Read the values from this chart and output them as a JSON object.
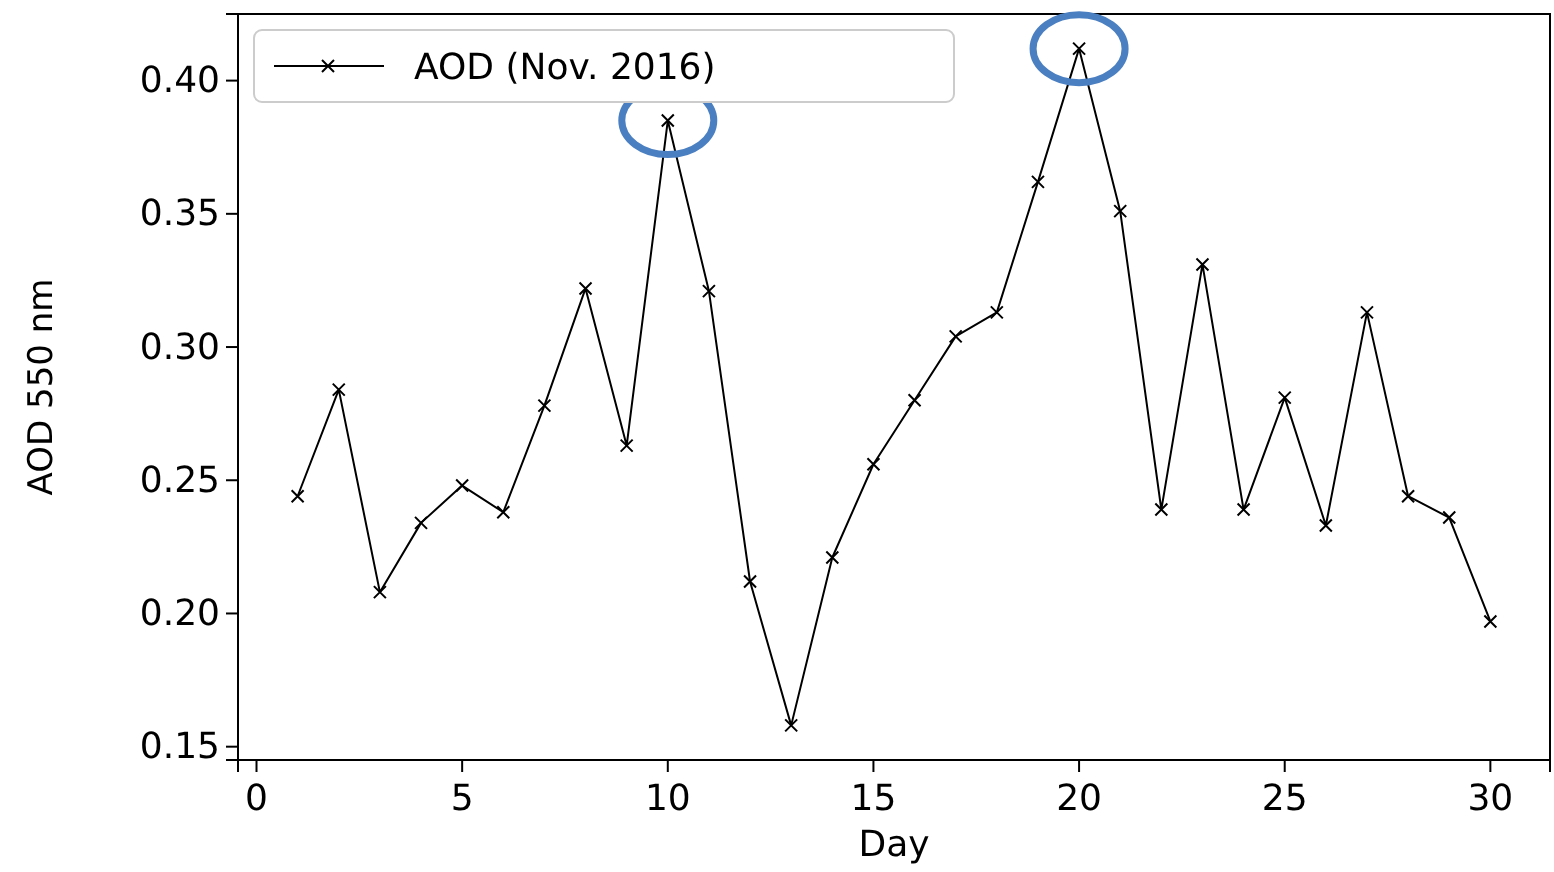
{
  "chart_data": {
    "type": "line",
    "xlabel": "Day",
    "ylabel": "AOD 550 nm",
    "x": [
      1,
      2,
      3,
      4,
      5,
      6,
      7,
      8,
      9,
      10,
      11,
      12,
      13,
      14,
      15,
      16,
      17,
      18,
      19,
      20,
      21,
      22,
      23,
      24,
      25,
      26,
      27,
      28,
      29,
      30
    ],
    "series": [
      {
        "name": "AOD (Nov. 2016)",
        "color": "#000000",
        "values": [
          0.244,
          0.284,
          0.208,
          0.234,
          0.248,
          0.238,
          0.278,
          0.322,
          0.263,
          0.385,
          0.321,
          0.212,
          0.158,
          0.221,
          0.256,
          0.28,
          0.304,
          0.313,
          0.362,
          0.412,
          0.351,
          0.239,
          0.331,
          0.239,
          0.281,
          0.233,
          0.313,
          0.244,
          0.236,
          0.197
        ]
      }
    ],
    "xlim": [
      -0.45,
      31.45
    ],
    "xticks": [
      0,
      5,
      10,
      15,
      20,
      25,
      30
    ],
    "ylim": [
      0.145,
      0.425
    ],
    "yticks": [
      0.15,
      {
        "value": 0.2,
        "label": "0.20"
      },
      0.25,
      {
        "value": 0.3,
        "label": "0.30"
      },
      0.35,
      {
        "value": 0.4,
        "label": "0.40"
      }
    ],
    "marker": "cross",
    "line_style": "solid",
    "legend": "top left",
    "grid": false
  }
}
